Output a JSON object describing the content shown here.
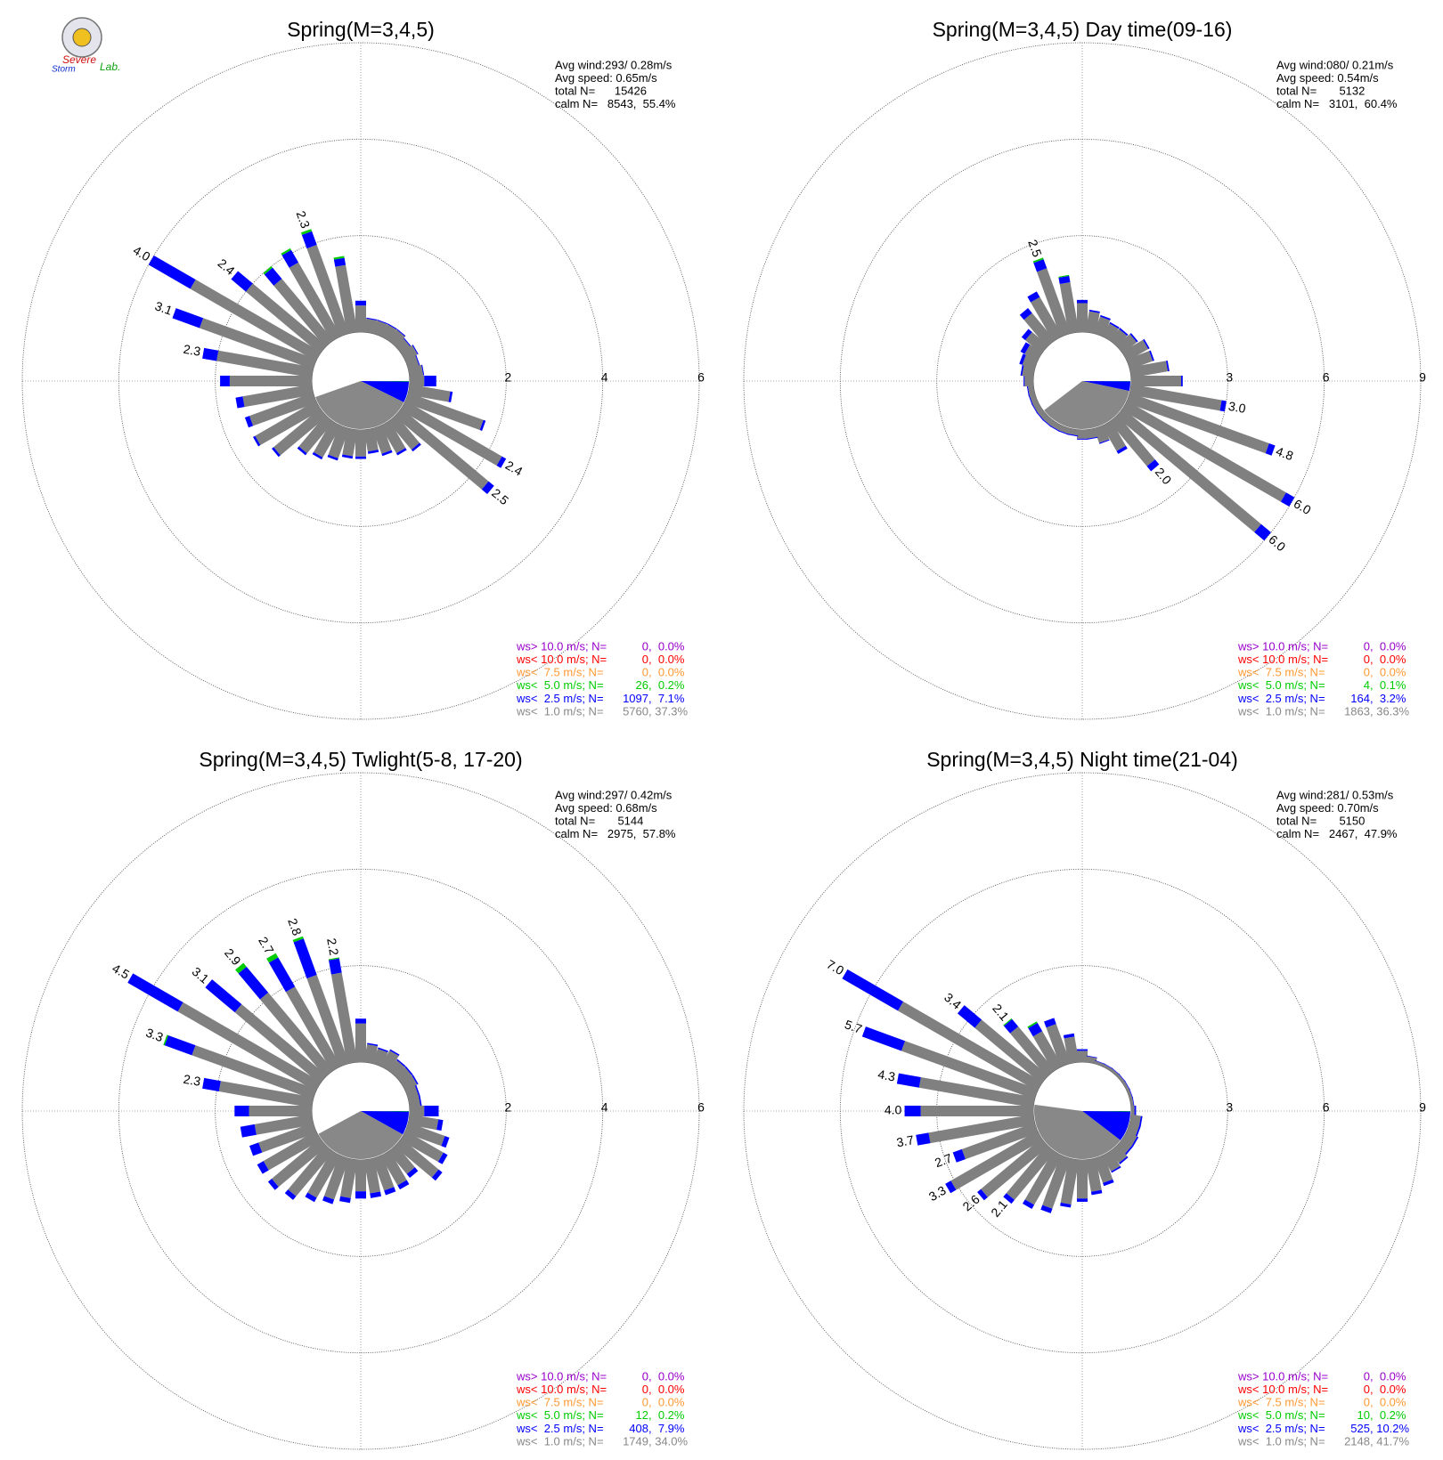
{
  "logo": {
    "top": "Severe",
    "bottom": "Storm",
    "tail": "Lab."
  },
  "chart_data": [
    {
      "type": "windrose",
      "title": "Spring(M=3,4,5)",
      "stats": [
        "Avg wind:293/ 0.28m/s",
        "Avg speed: 0.65m/s",
        "total N=      15426",
        "calm N=   8543,  55.4%"
      ],
      "rlim": [
        0,
        6
      ],
      "rticks": [
        2,
        4,
        6
      ],
      "directions": [
        0,
        10,
        20,
        30,
        40,
        50,
        60,
        70,
        80,
        90,
        100,
        110,
        120,
        130,
        140,
        150,
        160,
        170,
        180,
        190,
        200,
        210,
        220,
        230,
        240,
        250,
        260,
        270,
        280,
        290,
        300,
        310,
        320,
        330,
        340,
        350
      ],
      "series": [
        {
          "color": "#808080",
          "values": [
            0.55,
            0.28,
            0.28,
            0.28,
            0.28,
            0.23,
            0.28,
            0.23,
            0.28,
            0.3,
            0.85,
            1.65,
            2.3,
            2.35,
            0.75,
            0.65,
            0.55,
            0.45,
            0.55,
            0.55,
            0.65,
            0.75,
            0.85,
            1.25,
            1.45,
            1.4,
            1.45,
            1.7,
            2.0,
            2.5,
            3.0,
            2.0,
            1.66,
            1.76,
            1.95,
            1.41
          ]
        },
        {
          "color": "#0000ff",
          "values": [
            0.1,
            0.02,
            0.02,
            0.02,
            0.02,
            0.02,
            0.02,
            0.02,
            0.02,
            0.25,
            0.05,
            0.05,
            0.1,
            0.15,
            0.05,
            0.05,
            0.05,
            0.05,
            0.05,
            0.05,
            0.05,
            0.05,
            0.05,
            0.05,
            0.05,
            0.1,
            0.15,
            0.2,
            0.3,
            0.6,
            1.0,
            0.4,
            0.3,
            0.3,
            0.3,
            0.15
          ]
        },
        {
          "color": "#00cc00",
          "values": [
            0,
            0,
            0,
            0,
            0,
            0,
            0,
            0,
            0,
            0,
            0,
            0,
            0,
            0,
            0,
            0,
            0,
            0,
            0,
            0,
            0,
            0,
            0,
            0,
            0,
            0,
            0,
            0,
            0,
            0,
            0,
            0,
            0.04,
            0.04,
            0.05,
            0.04
          ]
        }
      ],
      "top_labels": [
        null,
        null,
        null,
        null,
        null,
        null,
        null,
        null,
        null,
        null,
        null,
        null,
        "2.4",
        "2.5",
        null,
        null,
        null,
        null,
        null,
        null,
        null,
        null,
        null,
        null,
        null,
        null,
        null,
        null,
        "2.3",
        "3.1",
        "4.0",
        "2.4",
        null,
        null,
        "2.3",
        null
      ],
      "legend": [
        {
          "label": "ws> 10.0 m/s; N=",
          "color": "#9900cc",
          "n": 0,
          "pct": 0.0,
          "pct_label": ",  0.0%"
        },
        {
          "label": "ws< 10.0 m/s; N=",
          "color": "#ff0000",
          "n": 0,
          "pct": 0.0,
          "pct_label": ",  0.0%"
        },
        {
          "label": "ws<  7.5 m/s; N=",
          "color": "#ff9933",
          "n": 0,
          "pct": 0.0,
          "pct_label": ",  0.0%"
        },
        {
          "label": "ws<  5.0 m/s; N=",
          "color": "#00cc00",
          "n": 26,
          "pct": 0.2,
          "pct_label": ",  0.2%"
        },
        {
          "label": "ws<  2.5 m/s; N=",
          "color": "#0000ff",
          "n": 1097,
          "pct": 7.1,
          "pct_label": ",  7.1%"
        },
        {
          "label": "ws<  1.0 m/s; N=",
          "color": "#888888",
          "n": 5760,
          "pct": 37.3,
          "pct_label": ", 37.3%"
        }
      ]
    },
    {
      "type": "windrose",
      "title": "Spring(M=3,4,5) Day time(09-16)",
      "stats": [
        "Avg wind:080/ 0.21m/s",
        "Avg speed: 0.54m/s",
        "total N=       5132",
        "calm N=   3101,  60.4%"
      ],
      "rlim": [
        0,
        9
      ],
      "rticks": [
        3,
        6,
        9
      ],
      "directions": [
        0,
        10,
        20,
        30,
        40,
        50,
        60,
        70,
        80,
        90,
        100,
        110,
        120,
        130,
        140,
        150,
        160,
        170,
        180,
        190,
        200,
        210,
        220,
        230,
        240,
        250,
        260,
        270,
        280,
        290,
        300,
        310,
        320,
        330,
        340,
        350
      ],
      "series": [
        {
          "color": "#808080",
          "values": [
            0.9,
            0.65,
            0.55,
            0.45,
            0.45,
            0.55,
            0.75,
            0.75,
            1.15,
            1.55,
            2.85,
            4.6,
            5.7,
            5.6,
            1.8,
            0.9,
            0.47,
            0.27,
            0.27,
            0.17,
            0.17,
            0.17,
            0.17,
            0.17,
            0.17,
            0.17,
            0.17,
            0.27,
            0.35,
            0.4,
            0.45,
            0.65,
            1.1,
            1.4,
            2.15,
            1.57
          ]
        },
        {
          "color": "#0000ff",
          "values": [
            0.1,
            0.05,
            0.05,
            0.05,
            0.05,
            0.05,
            0.05,
            0.05,
            0.05,
            0.05,
            0.15,
            0.2,
            0.3,
            0.4,
            0.2,
            0.1,
            0.03,
            0.03,
            0.03,
            0.03,
            0.03,
            0.03,
            0.03,
            0.03,
            0.03,
            0.03,
            0.03,
            0.03,
            0.05,
            0.1,
            0.15,
            0.15,
            0.2,
            0.2,
            0.3,
            0.2
          ]
        },
        {
          "color": "#00cc00",
          "values": [
            0,
            0,
            0,
            0,
            0,
            0,
            0,
            0,
            0,
            0,
            0,
            0,
            0,
            0,
            0,
            0,
            0,
            0,
            0,
            0,
            0,
            0,
            0,
            0,
            0,
            0,
            0,
            0,
            0,
            0,
            0,
            0,
            0,
            0,
            0.05,
            0.03
          ]
        }
      ],
      "top_labels": [
        null,
        null,
        null,
        null,
        null,
        null,
        null,
        null,
        null,
        null,
        "3.0",
        "4.8",
        "6.0",
        "6.0",
        "2.0",
        null,
        null,
        null,
        null,
        null,
        null,
        null,
        null,
        null,
        null,
        null,
        null,
        null,
        null,
        null,
        null,
        null,
        null,
        null,
        "2.5",
        null
      ],
      "legend": [
        {
          "label": "ws> 10.0 m/s; N=",
          "color": "#9900cc",
          "n": 0,
          "pct": 0.0,
          "pct_label": ",  0.0%"
        },
        {
          "label": "ws< 10.0 m/s; N=",
          "color": "#ff0000",
          "n": 0,
          "pct": 0.0,
          "pct_label": ",  0.0%"
        },
        {
          "label": "ws<  7.5 m/s; N=",
          "color": "#ff9933",
          "n": 0,
          "pct": 0.0,
          "pct_label": ",  0.0%"
        },
        {
          "label": "ws<  5.0 m/s; N=",
          "color": "#00cc00",
          "n": 4,
          "pct": 0.1,
          "pct_label": ",  0.1%"
        },
        {
          "label": "ws<  2.5 m/s; N=",
          "color": "#0000ff",
          "n": 164,
          "pct": 3.2,
          "pct_label": ",  3.2%"
        },
        {
          "label": "ws<  1.0 m/s; N=",
          "color": "#888888",
          "n": 1863,
          "pct": 36.3,
          "pct_label": ", 36.3%"
        }
      ]
    },
    {
      "type": "windrose",
      "title": "Spring(M=3,4,5) Twlight(5-8, 17-20)",
      "stats": [
        "Avg wind:297/ 0.42m/s",
        "Avg speed: 0.68m/s",
        "total N=       5144",
        "calm N=   2975,  57.8%"
      ],
      "rlim": [
        0,
        6
      ],
      "rticks": [
        2,
        4,
        6
      ],
      "directions": [
        0,
        10,
        20,
        30,
        40,
        50,
        60,
        70,
        80,
        90,
        100,
        110,
        120,
        130,
        140,
        150,
        160,
        170,
        180,
        190,
        200,
        210,
        220,
        230,
        240,
        250,
        260,
        270,
        280,
        290,
        300,
        310,
        320,
        330,
        340,
        350
      ],
      "series": [
        {
          "color": "#808080",
          "values": [
            0.8,
            0.37,
            0.32,
            0.37,
            0.27,
            0.27,
            0.27,
            0.22,
            0.22,
            0.3,
            0.6,
            0.8,
            0.9,
            1.0,
            0.6,
            0.7,
            0.7,
            0.7,
            0.65,
            0.8,
            0.9,
            1.0,
            1.2,
            1.3,
            1.25,
            1.2,
            1.2,
            1.3,
            1.95,
            2.67,
            3.3,
            2.3,
            2.1,
            1.9,
            1.95,
            1.88
          ]
        },
        {
          "color": "#0000ff",
          "values": [
            0.1,
            0.03,
            0.03,
            0.03,
            0.03,
            0.03,
            0.03,
            0.03,
            0.03,
            0.3,
            0.1,
            0.1,
            0.1,
            0.1,
            0.1,
            0.1,
            0.1,
            0.1,
            0.15,
            0.1,
            0.1,
            0.1,
            0.1,
            0.1,
            0.15,
            0.2,
            0.3,
            0.3,
            0.35,
            0.6,
            1.2,
            0.8,
            0.7,
            0.7,
            0.8,
            0.3
          ]
        },
        {
          "color": "#00cc00",
          "values": [
            0,
            0,
            0,
            0,
            0,
            0,
            0,
            0,
            0,
            0,
            0,
            0,
            0,
            0,
            0,
            0,
            0,
            0,
            0,
            0,
            0,
            0,
            0,
            0,
            0,
            0,
            0,
            0,
            0,
            0.03,
            0,
            0,
            0.1,
            0.1,
            0.05,
            0.02
          ]
        }
      ],
      "top_labels": [
        null,
        null,
        null,
        null,
        null,
        null,
        null,
        null,
        null,
        null,
        null,
        null,
        null,
        null,
        null,
        null,
        null,
        null,
        null,
        null,
        null,
        null,
        null,
        null,
        null,
        null,
        null,
        null,
        "2.3",
        "3.3",
        "4.5",
        "3.1",
        "2.9",
        "2.7",
        "2.8",
        "2.2"
      ],
      "legend": [
        {
          "label": "ws> 10.0 m/s; N=",
          "color": "#9900cc",
          "n": 0,
          "pct": 0.0,
          "pct_label": ",  0.0%"
        },
        {
          "label": "ws< 10.0 m/s; N=",
          "color": "#ff0000",
          "n": 0,
          "pct": 0.0,
          "pct_label": ",  0.0%"
        },
        {
          "label": "ws<  7.5 m/s; N=",
          "color": "#ff9933",
          "n": 0,
          "pct": 0.0,
          "pct_label": ",  0.0%"
        },
        {
          "label": "ws<  5.0 m/s; N=",
          "color": "#00cc00",
          "n": 12,
          "pct": 0.2,
          "pct_label": ",  0.2%"
        },
        {
          "label": "ws<  2.5 m/s; N=",
          "color": "#0000ff",
          "n": 408,
          "pct": 7.9,
          "pct_label": ",  7.9%"
        },
        {
          "label": "ws<  1.0 m/s; N=",
          "color": "#888888",
          "n": 1749,
          "pct": 34.0,
          "pct_label": ", 34.0%"
        }
      ]
    },
    {
      "type": "windrose",
      "title": "Spring(M=3,4,5) Night time(21-04)",
      "stats": [
        "Avg wind:281/ 0.53m/s",
        "Avg speed: 0.70m/s",
        "total N=       5150",
        "calm N=   2467,  47.9%"
      ],
      "rlim": [
        0,
        9
      ],
      "rticks": [
        3,
        6,
        9
      ],
      "directions": [
        0,
        10,
        20,
        30,
        40,
        50,
        60,
        70,
        80,
        90,
        100,
        110,
        120,
        130,
        140,
        150,
        160,
        170,
        180,
        190,
        200,
        210,
        220,
        230,
        240,
        250,
        260,
        270,
        280,
        290,
        300,
        310,
        320,
        330,
        340,
        350
      ],
      "series": [
        {
          "color": "#808080",
          "values": [
            0.35,
            0.18,
            0.08,
            0.08,
            0.08,
            0.08,
            0.08,
            0.08,
            0.08,
            0.1,
            0.3,
            0.3,
            0.35,
            0.35,
            0.45,
            0.55,
            0.8,
            1.0,
            1.2,
            1.4,
            1.65,
            1.75,
            1.95,
            2.45,
            3.1,
            2.4,
            3.3,
            3.5,
            3.6,
            4.4,
            5.0,
            2.7,
            1.77,
            1.25,
            1.3,
            0.8
          ]
        },
        {
          "color": "#0000ff",
          "values": [
            0.05,
            0.02,
            0.02,
            0.02,
            0.02,
            0.02,
            0.02,
            0.02,
            0.02,
            0.05,
            0.05,
            0.05,
            0.05,
            0.05,
            0.05,
            0.05,
            0.1,
            0.1,
            0.1,
            0.1,
            0.15,
            0.15,
            0.15,
            0.15,
            0.2,
            0.3,
            0.4,
            0.5,
            0.7,
            1.3,
            2.0,
            0.7,
            0.3,
            0.3,
            0.2,
            0.1
          ]
        },
        {
          "color": "#00cc00",
          "values": [
            0,
            0,
            0,
            0,
            0,
            0,
            0,
            0,
            0,
            0,
            0,
            0,
            0,
            0,
            0,
            0,
            0,
            0,
            0,
            0,
            0,
            0,
            0,
            0,
            0,
            0,
            0,
            0,
            0,
            0,
            0,
            0,
            0.03,
            0.05,
            0,
            0
          ]
        }
      ],
      "top_labels": [
        null,
        null,
        null,
        null,
        null,
        null,
        null,
        null,
        null,
        null,
        null,
        null,
        null,
        null,
        null,
        null,
        null,
        null,
        null,
        null,
        null,
        null,
        "2.1",
        "2.6",
        "3.3",
        "2.7",
        "3.7",
        "4.0",
        "4.3",
        "5.7",
        "7.0",
        "3.4",
        "2.1",
        null,
        null,
        null
      ],
      "legend": [
        {
          "label": "ws> 10.0 m/s; N=",
          "color": "#9900cc",
          "n": 0,
          "pct": 0.0,
          "pct_label": ",  0.0%"
        },
        {
          "label": "ws< 10.0 m/s; N=",
          "color": "#ff0000",
          "n": 0,
          "pct": 0.0,
          "pct_label": ",  0.0%"
        },
        {
          "label": "ws<  7.5 m/s; N=",
          "color": "#ff9933",
          "n": 0,
          "pct": 0.0,
          "pct_label": ",  0.0%"
        },
        {
          "label": "ws<  5.0 m/s; N=",
          "color": "#00cc00",
          "n": 10,
          "pct": 0.2,
          "pct_label": ",  0.2%"
        },
        {
          "label": "ws<  2.5 m/s; N=",
          "color": "#0000ff",
          "n": 525,
          "pct": 10.2,
          "pct_label": ", 10.2%"
        },
        {
          "label": "ws<  1.0 m/s; N=",
          "color": "#888888",
          "n": 2148,
          "pct": 41.7,
          "pct_label": ", 41.7%"
        }
      ]
    }
  ]
}
